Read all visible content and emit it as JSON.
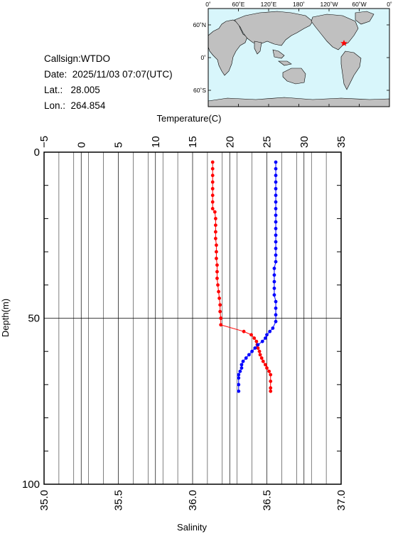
{
  "info": {
    "callsign": "Callsign:WTDO",
    "date": "Date:  2025/11/03 07:07(UTC)",
    "lat": "Lat.:   28.005",
    "lon": "Lon.:  264.854"
  },
  "map": {
    "top_labels": [
      "0˚",
      "60˚E",
      "120˚E",
      "180˚",
      "120˚W",
      "60˚W",
      "0˚"
    ],
    "left_labels": [
      "60˚N",
      "0˚",
      "60˚S"
    ],
    "ocean_color": "#d8f6fb",
    "land_color": "#c0c0c0",
    "marker_color": "#ff0000",
    "marker_icon": "star-icon"
  },
  "chart_data": {
    "type": "line",
    "title": "",
    "ylabel": "Depth(m)",
    "xlabel_top": "Temperature(C)",
    "xlabel_bottom": "Salinity",
    "ylim": [
      0,
      100
    ],
    "y_inverted": true,
    "temperature_axis": {
      "range": [
        -5,
        35
      ],
      "ticks": [
        "−5",
        "0",
        "5",
        "10",
        "15",
        "20",
        "25",
        "30",
        "35"
      ]
    },
    "salinity_axis": {
      "range": [
        35.0,
        37.0
      ],
      "ticks": [
        "35.0",
        "35.5",
        "36.0",
        "36.5",
        "37.0"
      ]
    },
    "depth_ticks": [
      "0",
      "50",
      "100"
    ],
    "grid": true,
    "series": [
      {
        "key": "temperature",
        "axis": "temperature",
        "color": "#ff0000",
        "points": [
          [
            17.7,
            3
          ],
          [
            17.7,
            5
          ],
          [
            17.7,
            7
          ],
          [
            17.7,
            9
          ],
          [
            17.7,
            11
          ],
          [
            17.7,
            13
          ],
          [
            17.7,
            15
          ],
          [
            17.7,
            17
          ],
          [
            18.0,
            18
          ],
          [
            18.1,
            20
          ],
          [
            18.1,
            22
          ],
          [
            18.1,
            24
          ],
          [
            18.1,
            26
          ],
          [
            18.2,
            28
          ],
          [
            18.2,
            30
          ],
          [
            18.2,
            32
          ],
          [
            18.3,
            34
          ],
          [
            18.3,
            36
          ],
          [
            18.3,
            38
          ],
          [
            18.4,
            40
          ],
          [
            18.5,
            42
          ],
          [
            18.6,
            44
          ],
          [
            18.7,
            46
          ],
          [
            18.7,
            48
          ],
          [
            18.8,
            50
          ],
          [
            18.8,
            52
          ],
          [
            21.9,
            54
          ],
          [
            22.9,
            55
          ],
          [
            23.3,
            56
          ],
          [
            23.6,
            57
          ],
          [
            23.7,
            58
          ],
          [
            23.8,
            59
          ],
          [
            24.0,
            60
          ],
          [
            24.1,
            61
          ],
          [
            24.3,
            62
          ],
          [
            24.5,
            63
          ],
          [
            24.8,
            64
          ],
          [
            25.0,
            65
          ],
          [
            25.3,
            66
          ],
          [
            25.5,
            67
          ],
          [
            25.5,
            69
          ],
          [
            25.5,
            71
          ],
          [
            25.5,
            72
          ]
        ]
      },
      {
        "key": "salinity",
        "axis": "salinity",
        "color": "#0000ff",
        "points": [
          [
            36.56,
            3
          ],
          [
            36.56,
            5
          ],
          [
            36.56,
            7
          ],
          [
            36.56,
            9
          ],
          [
            36.56,
            11
          ],
          [
            36.56,
            13
          ],
          [
            36.56,
            15
          ],
          [
            36.56,
            17
          ],
          [
            36.56,
            19
          ],
          [
            36.56,
            21
          ],
          [
            36.56,
            23
          ],
          [
            36.56,
            25
          ],
          [
            36.56,
            27
          ],
          [
            36.56,
            29
          ],
          [
            36.56,
            31
          ],
          [
            36.56,
            33
          ],
          [
            36.55,
            35
          ],
          [
            36.55,
            37
          ],
          [
            36.55,
            39
          ],
          [
            36.55,
            41
          ],
          [
            36.55,
            43
          ],
          [
            36.56,
            45
          ],
          [
            36.56,
            47
          ],
          [
            36.56,
            49
          ],
          [
            36.56,
            51
          ],
          [
            36.54,
            53
          ],
          [
            36.52,
            54
          ],
          [
            36.5,
            55
          ],
          [
            36.49,
            56
          ],
          [
            36.47,
            57
          ],
          [
            36.44,
            58
          ],
          [
            36.42,
            59
          ],
          [
            36.4,
            60
          ],
          [
            36.38,
            61
          ],
          [
            36.36,
            62
          ],
          [
            36.34,
            63
          ],
          [
            36.33,
            64
          ],
          [
            36.33,
            65
          ],
          [
            36.32,
            66
          ],
          [
            36.31,
            67
          ],
          [
            36.31,
            68
          ],
          [
            36.31,
            70
          ],
          [
            36.31,
            72
          ]
        ]
      }
    ]
  }
}
